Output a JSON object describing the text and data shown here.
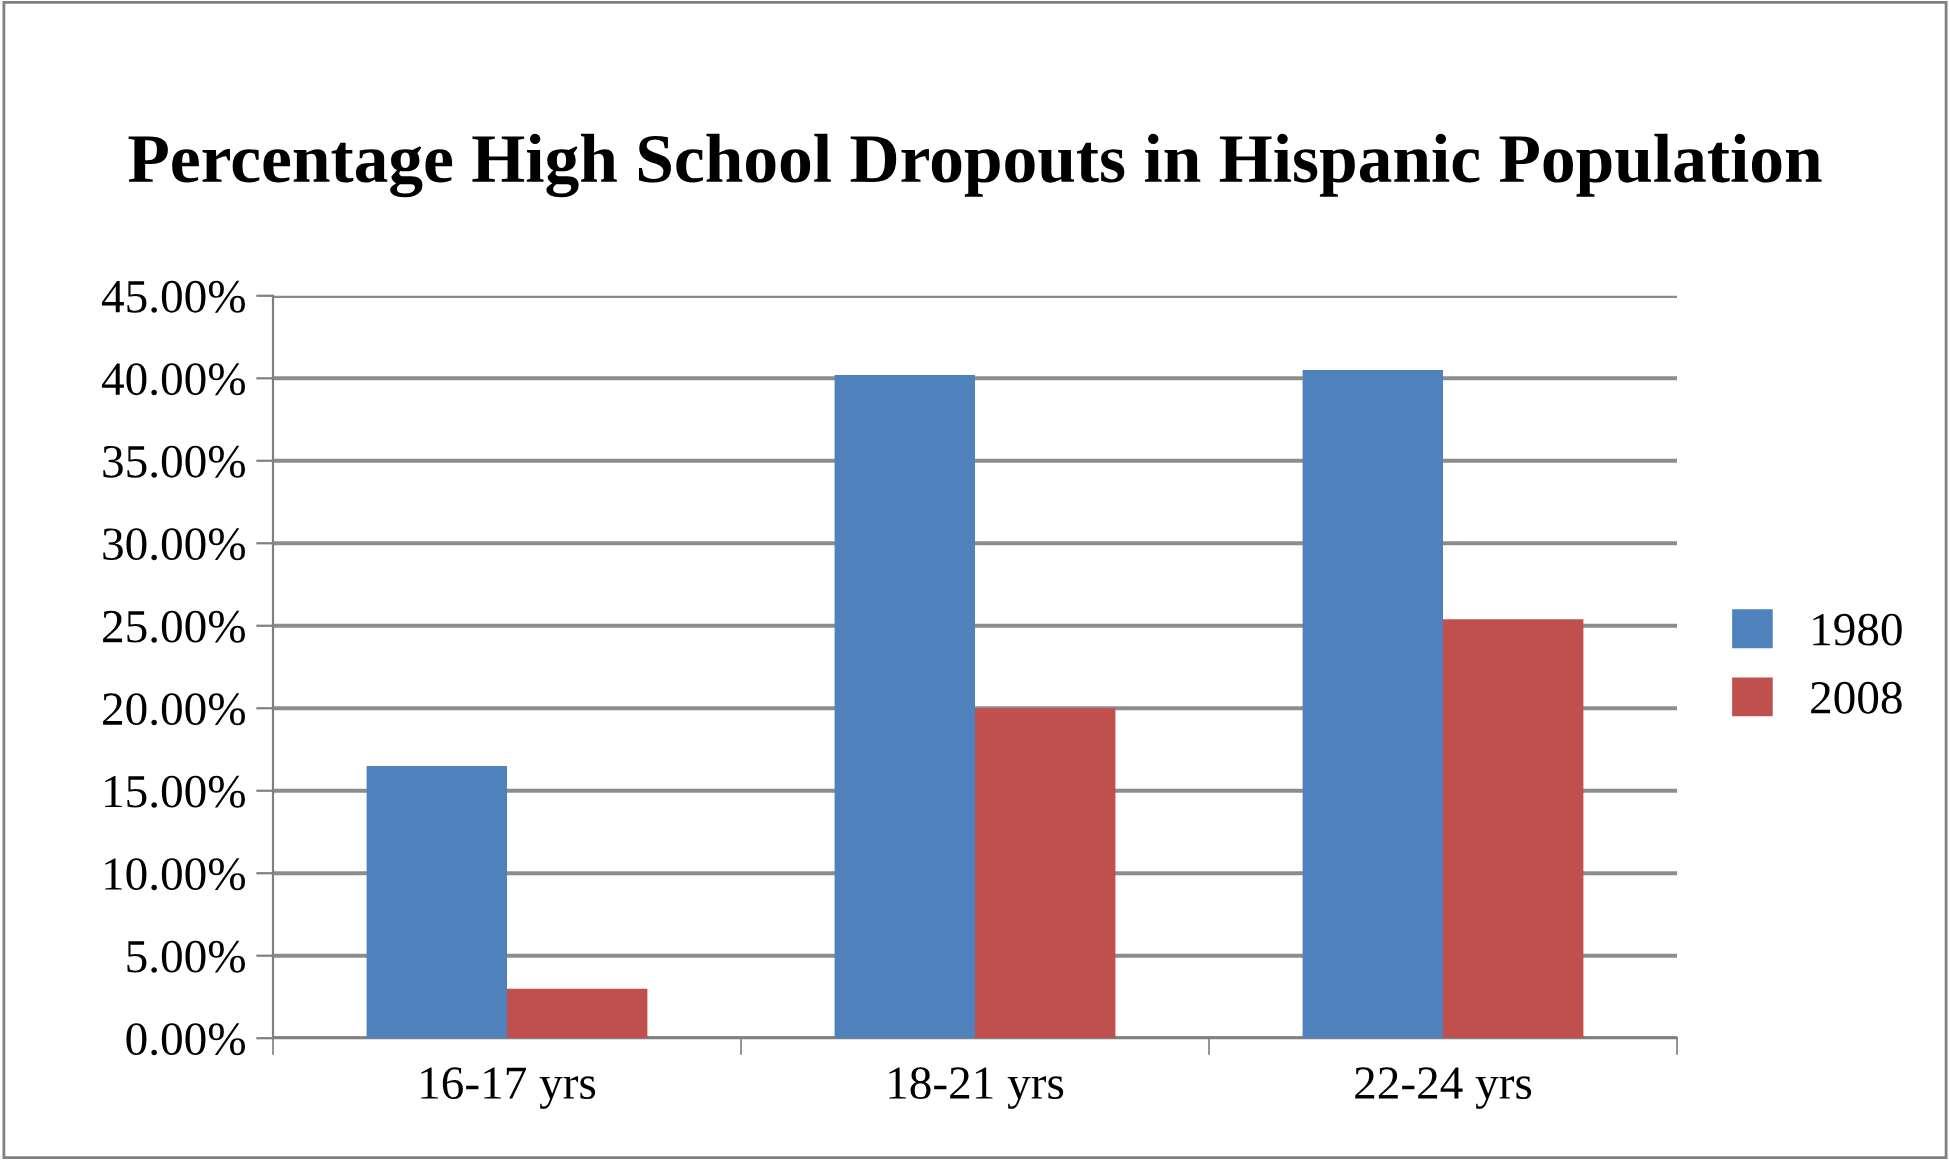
{
  "chart_data": {
    "type": "bar",
    "title": "Percentage High School Dropouts in Hispanic Population",
    "categories": [
      "16-17 yrs",
      "18-21 yrs",
      "22-24 yrs"
    ],
    "series": [
      {
        "name": "1980",
        "color": "#4f81bd",
        "values": [
          16.5,
          40.2,
          40.5
        ]
      },
      {
        "name": "2008",
        "color": "#c0504d",
        "values": [
          3.0,
          20.0,
          25.4
        ]
      }
    ],
    "ylim": [
      0,
      45
    ],
    "yticks": [
      {
        "value": 0,
        "label": "0.00%"
      },
      {
        "value": 5,
        "label": "5.00%"
      },
      {
        "value": 10,
        "label": "10.00%"
      },
      {
        "value": 15,
        "label": "15.00%"
      },
      {
        "value": 20,
        "label": "20.00%"
      },
      {
        "value": 25,
        "label": "25.00%"
      },
      {
        "value": 30,
        "label": "30.00%"
      },
      {
        "value": 35,
        "label": "35.00%"
      },
      {
        "value": 40,
        "label": "40.00%"
      },
      {
        "value": 45,
        "label": "45.00%"
      }
    ],
    "grid": "y",
    "legend": "right"
  }
}
